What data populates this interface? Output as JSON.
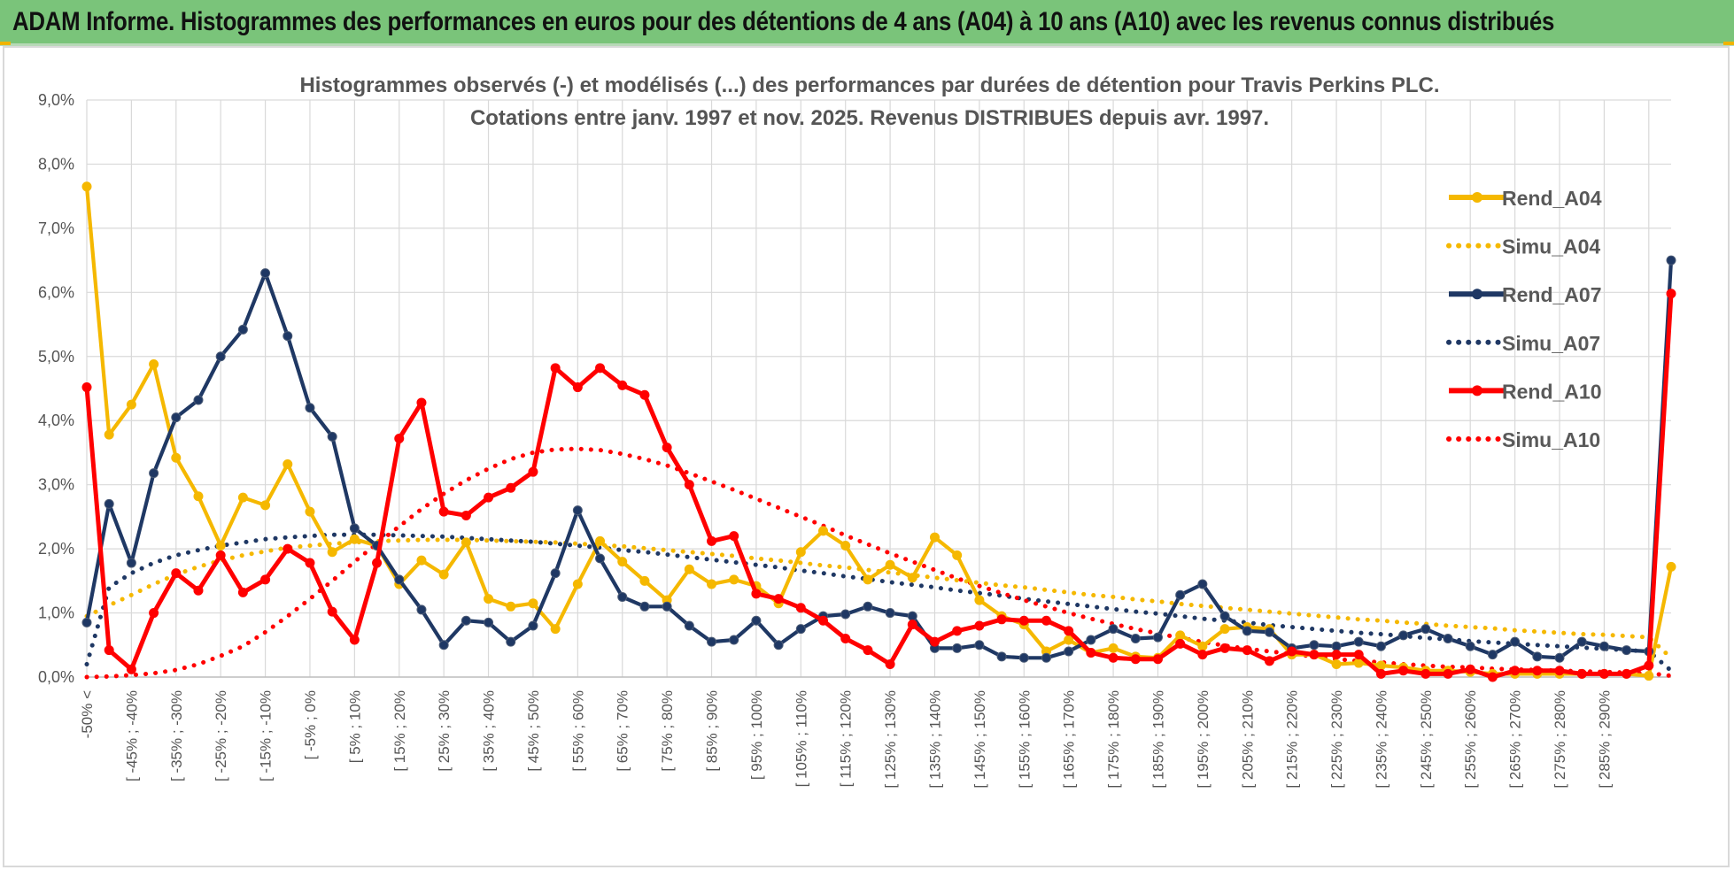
{
  "banner": {
    "title": "ADAM Informe. Histogrammes des performances en euros pour des détentions de 4 ans (A04) à 10 ans (A10) avec les revenus connus distribués"
  },
  "chart_data": {
    "type": "line",
    "title_line1": "Histogrammes observés (-) et modélisés (...) des performances par durées de détention pour Travis Perkins PLC.",
    "title_line2": "Cotations entre janv. 1997 et nov. 2025. Revenus DISTRIBUES depuis avr. 1997.",
    "ylim": [
      0,
      9
    ],
    "yticks": [
      "0,0%",
      "1,0%",
      "2,0%",
      "3,0%",
      "4,0%",
      "5,0%",
      "6,0%",
      "7,0%",
      "8,0%",
      "9,0%"
    ],
    "xtick_labels": [
      "-50% <",
      "[ -45% ; -40%",
      "[ -35% ; -30%",
      "[ -25% ; -20%",
      "[ -15% ; -10%",
      "[ -5% ; 0%",
      "[ 5% ; 10%",
      "[ 15% ; 20%",
      "[ 25% ; 30%",
      "[ 35% ; 40%",
      "[ 45% ; 50%",
      "[ 55% ; 60%",
      "[ 65% ; 70%",
      "[ 75% ; 80%",
      "[ 85% ; 90%",
      "[ 95% ; 100%",
      "[ 105% ; 110%",
      "[ 115% ; 120%",
      "[ 125% ; 130%",
      "[ 135% ; 140%",
      "[ 145% ; 150%",
      "[ 155% ; 160%",
      "[ 165% ; 170%",
      "[ 175% ; 180%",
      "[ 185% ; 190%",
      "[ 195% ; 200%",
      "[ 205% ; 210%",
      "[ 215% ; 220%",
      "[ 225% ; 230%",
      "[ 235% ; 240%",
      "[ 245% ; 250%",
      "[ 255% ; 260%",
      "[ 265% ; 270%",
      "[ 275% ; 280%",
      "[ 285% ; 290%"
    ],
    "series": [
      {
        "name": "Rend_A04",
        "color": "#f5b800",
        "style": "solid",
        "values": [
          7.65,
          3.78,
          4.25,
          4.88,
          3.42,
          2.82,
          2.05,
          2.8,
          2.68,
          3.32,
          2.58,
          1.95,
          2.15,
          2.05,
          1.45,
          1.82,
          1.6,
          2.1,
          1.22,
          1.1,
          1.15,
          0.75,
          1.45,
          2.12,
          1.8,
          1.5,
          1.2,
          1.68,
          1.45,
          1.52,
          1.42,
          1.15,
          1.95,
          2.28,
          2.05,
          1.52,
          1.75,
          1.55,
          2.18,
          1.9,
          1.2,
          0.95,
          0.82,
          0.4,
          0.58,
          0.38,
          0.45,
          0.32,
          0.3,
          0.65,
          0.48,
          0.75,
          0.78,
          0.75,
          0.35,
          0.35,
          0.2,
          0.22,
          0.18,
          0.15,
          0.1,
          0.1,
          0.08,
          0.05,
          0.05,
          0.05,
          0.05,
          0.05,
          0.05,
          0.05,
          0.02,
          1.72
        ]
      },
      {
        "name": "Simu_A04",
        "color": "#f5b800",
        "style": "dotted",
        "values": [
          0.95,
          1.12,
          1.28,
          1.45,
          1.6,
          1.72,
          1.82,
          1.9,
          1.96,
          2.02,
          2.05,
          2.08,
          2.1,
          2.12,
          2.13,
          2.14,
          2.14,
          2.14,
          2.13,
          2.12,
          2.11,
          2.1,
          2.08,
          2.06,
          2.04,
          2.01,
          1.98,
          1.95,
          1.92,
          1.89,
          1.85,
          1.82,
          1.78,
          1.74,
          1.71,
          1.67,
          1.63,
          1.59,
          1.55,
          1.51,
          1.47,
          1.43,
          1.4,
          1.36,
          1.32,
          1.28,
          1.25,
          1.21,
          1.18,
          1.14,
          1.11,
          1.08,
          1.05,
          1.02,
          0.99,
          0.96,
          0.93,
          0.9,
          0.88,
          0.85,
          0.83,
          0.8,
          0.78,
          0.76,
          0.73,
          0.71,
          0.69,
          0.67,
          0.66,
          0.64,
          0.62,
          0.3
        ]
      },
      {
        "name": "Rend_A07",
        "color": "#1f3864",
        "style": "solid",
        "values": [
          0.85,
          2.7,
          1.78,
          3.18,
          4.05,
          4.32,
          5.0,
          5.42,
          6.3,
          5.32,
          4.2,
          3.75,
          2.32,
          2.05,
          1.52,
          1.05,
          0.5,
          0.88,
          0.85,
          0.55,
          0.8,
          1.62,
          2.6,
          1.85,
          1.25,
          1.1,
          1.1,
          0.8,
          0.55,
          0.58,
          0.88,
          0.5,
          0.75,
          0.95,
          0.98,
          1.1,
          1.0,
          0.95,
          0.45,
          0.45,
          0.5,
          0.32,
          0.3,
          0.3,
          0.4,
          0.58,
          0.75,
          0.6,
          0.62,
          1.28,
          1.45,
          0.95,
          0.72,
          0.7,
          0.45,
          0.5,
          0.48,
          0.55,
          0.48,
          0.65,
          0.75,
          0.6,
          0.48,
          0.35,
          0.55,
          0.32,
          0.3,
          0.55,
          0.48,
          0.42,
          0.4,
          6.5
        ]
      },
      {
        "name": "Simu_A07",
        "color": "#1f3864",
        "style": "dotted",
        "values": [
          0.2,
          1.4,
          1.62,
          1.78,
          1.9,
          1.98,
          2.05,
          2.1,
          2.15,
          2.18,
          2.2,
          2.22,
          2.22,
          2.22,
          2.21,
          2.2,
          2.19,
          2.17,
          2.15,
          2.13,
          2.11,
          2.08,
          2.05,
          2.02,
          1.98,
          1.95,
          1.91,
          1.87,
          1.83,
          1.79,
          1.75,
          1.71,
          1.66,
          1.62,
          1.57,
          1.53,
          1.48,
          1.44,
          1.4,
          1.35,
          1.31,
          1.27,
          1.22,
          1.18,
          1.14,
          1.1,
          1.06,
          1.02,
          0.99,
          0.95,
          0.91,
          0.88,
          0.85,
          0.81,
          0.78,
          0.75,
          0.72,
          0.69,
          0.67,
          0.64,
          0.61,
          0.59,
          0.56,
          0.54,
          0.52,
          0.5,
          0.48,
          0.46,
          0.44,
          0.42,
          0.4,
          0.1
        ]
      },
      {
        "name": "Rend_A10",
        "color": "#ff0000",
        "style": "solid",
        "values": [
          4.52,
          0.42,
          0.12,
          1.0,
          1.62,
          1.35,
          1.9,
          1.32,
          1.52,
          2.0,
          1.78,
          1.02,
          0.58,
          1.78,
          3.72,
          4.28,
          2.58,
          2.52,
          2.8,
          2.95,
          3.2,
          4.82,
          4.52,
          4.82,
          4.55,
          4.4,
          3.58,
          3.0,
          2.12,
          2.2,
          1.3,
          1.22,
          1.08,
          0.88,
          0.6,
          0.42,
          0.2,
          0.82,
          0.55,
          0.72,
          0.8,
          0.9,
          0.88,
          0.88,
          0.72,
          0.38,
          0.3,
          0.28,
          0.28,
          0.52,
          0.35,
          0.45,
          0.42,
          0.25,
          0.4,
          0.35,
          0.35,
          0.35,
          0.05,
          0.1,
          0.05,
          0.05,
          0.12,
          0.0,
          0.1,
          0.1,
          0.1,
          0.05,
          0.05,
          0.05,
          0.18,
          5.98
        ]
      },
      {
        "name": "Simu_A10",
        "color": "#ff0000",
        "style": "dotted",
        "values": [
          0.0,
          0.01,
          0.03,
          0.06,
          0.11,
          0.2,
          0.33,
          0.48,
          0.7,
          0.95,
          1.22,
          1.5,
          1.8,
          2.08,
          2.35,
          2.62,
          2.86,
          3.07,
          3.25,
          3.4,
          3.5,
          3.55,
          3.56,
          3.54,
          3.48,
          3.4,
          3.3,
          3.18,
          3.05,
          2.92,
          2.78,
          2.64,
          2.5,
          2.36,
          2.21,
          2.07,
          1.93,
          1.8,
          1.67,
          1.54,
          1.42,
          1.31,
          1.2,
          1.1,
          1.0,
          0.91,
          0.83,
          0.75,
          0.68,
          0.61,
          0.55,
          0.49,
          0.44,
          0.4,
          0.36,
          0.32,
          0.28,
          0.25,
          0.23,
          0.2,
          0.18,
          0.16,
          0.15,
          0.13,
          0.12,
          0.11,
          0.1,
          0.09,
          0.08,
          0.07,
          0.06,
          0.02
        ]
      }
    ],
    "legend": [
      "Rend_A04",
      "Simu_A04",
      "Rend_A07",
      "Simu_A07",
      "Rend_A10",
      "Simu_A10"
    ],
    "legend_position": "right"
  }
}
